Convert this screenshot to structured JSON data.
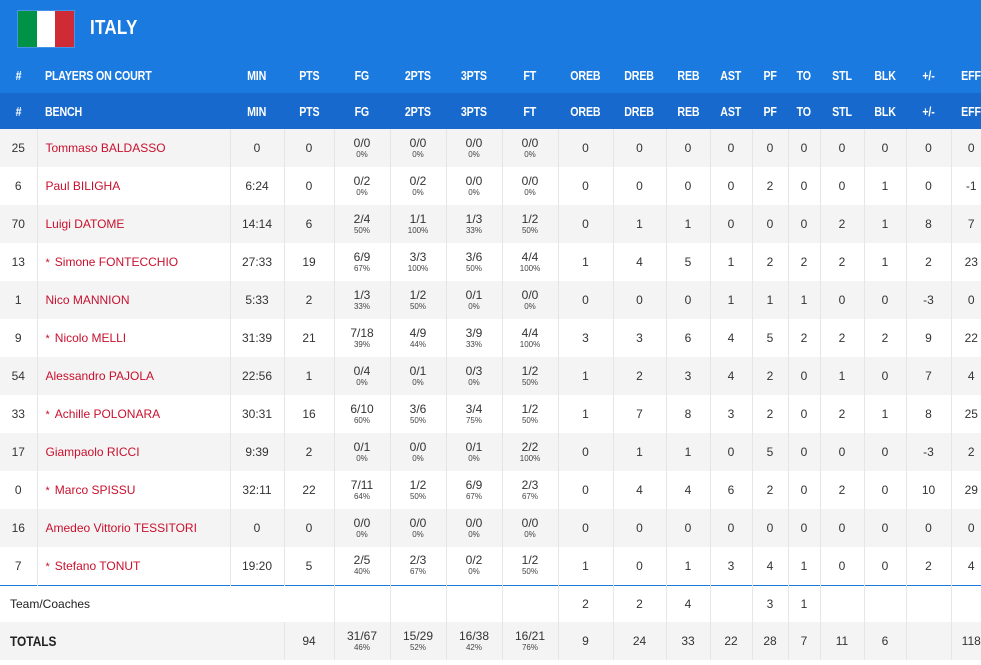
{
  "team": {
    "name": "ITALY",
    "flag_colors": [
      "#009246",
      "#ffffff",
      "#ce2b37"
    ]
  },
  "header_oncourt": [
    "#",
    "PLAYERS ON COURT",
    "MIN",
    "PTS",
    "FG",
    "2PTS",
    "3PTS",
    "FT",
    "OREB",
    "DREB",
    "REB",
    "AST",
    "PF",
    "TO",
    "STL",
    "BLK",
    "+/-",
    "EFF"
  ],
  "header_bench": [
    "#",
    "BENCH",
    "MIN",
    "PTS",
    "FG",
    "2PTS",
    "3PTS",
    "FT",
    "OREB",
    "DREB",
    "REB",
    "AST",
    "PF",
    "TO",
    "STL",
    "BLK",
    "+/-",
    "EFF"
  ],
  "players": [
    {
      "num": "25",
      "starter": false,
      "name": "Tommaso BALDASSO",
      "min": "0",
      "pts": "0",
      "fg": "0/0",
      "fg_pct": "0%",
      "p2": "0/0",
      "p2_pct": "0%",
      "p3": "0/0",
      "p3_pct": "0%",
      "ft": "0/0",
      "ft_pct": "0%",
      "oreb": "0",
      "dreb": "0",
      "reb": "0",
      "ast": "0",
      "pf": "0",
      "to": "0",
      "stl": "0",
      "blk": "0",
      "pm": "0",
      "eff": "0"
    },
    {
      "num": "6",
      "starter": false,
      "name": "Paul BILIGHA",
      "min": "6:24",
      "pts": "0",
      "fg": "0/2",
      "fg_pct": "0%",
      "p2": "0/2",
      "p2_pct": "0%",
      "p3": "0/0",
      "p3_pct": "0%",
      "ft": "0/0",
      "ft_pct": "0%",
      "oreb": "0",
      "dreb": "0",
      "reb": "0",
      "ast": "0",
      "pf": "2",
      "to": "0",
      "stl": "0",
      "blk": "1",
      "pm": "0",
      "eff": "-1"
    },
    {
      "num": "70",
      "starter": false,
      "name": "Luigi DATOME",
      "min": "14:14",
      "pts": "6",
      "fg": "2/4",
      "fg_pct": "50%",
      "p2": "1/1",
      "p2_pct": "100%",
      "p3": "1/3",
      "p3_pct": "33%",
      "ft": "1/2",
      "ft_pct": "50%",
      "oreb": "0",
      "dreb": "1",
      "reb": "1",
      "ast": "0",
      "pf": "0",
      "to": "0",
      "stl": "2",
      "blk": "1",
      "pm": "8",
      "eff": "7"
    },
    {
      "num": "13",
      "starter": true,
      "name": "Simone FONTECCHIO",
      "min": "27:33",
      "pts": "19",
      "fg": "6/9",
      "fg_pct": "67%",
      "p2": "3/3",
      "p2_pct": "100%",
      "p3": "3/6",
      "p3_pct": "50%",
      "ft": "4/4",
      "ft_pct": "100%",
      "oreb": "1",
      "dreb": "4",
      "reb": "5",
      "ast": "1",
      "pf": "2",
      "to": "2",
      "stl": "2",
      "blk": "1",
      "pm": "2",
      "eff": "23"
    },
    {
      "num": "1",
      "starter": false,
      "name": "Nico MANNION",
      "min": "5:33",
      "pts": "2",
      "fg": "1/3",
      "fg_pct": "33%",
      "p2": "1/2",
      "p2_pct": "50%",
      "p3": "0/1",
      "p3_pct": "0%",
      "ft": "0/0",
      "ft_pct": "0%",
      "oreb": "0",
      "dreb": "0",
      "reb": "0",
      "ast": "1",
      "pf": "1",
      "to": "1",
      "stl": "0",
      "blk": "0",
      "pm": "-3",
      "eff": "0"
    },
    {
      "num": "9",
      "starter": true,
      "name": "Nicolo MELLI",
      "min": "31:39",
      "pts": "21",
      "fg": "7/18",
      "fg_pct": "39%",
      "p2": "4/9",
      "p2_pct": "44%",
      "p3": "3/9",
      "p3_pct": "33%",
      "ft": "4/4",
      "ft_pct": "100%",
      "oreb": "3",
      "dreb": "3",
      "reb": "6",
      "ast": "4",
      "pf": "5",
      "to": "2",
      "stl": "2",
      "blk": "2",
      "pm": "9",
      "eff": "22"
    },
    {
      "num": "54",
      "starter": false,
      "name": "Alessandro PAJOLA",
      "min": "22:56",
      "pts": "1",
      "fg": "0/4",
      "fg_pct": "0%",
      "p2": "0/1",
      "p2_pct": "0%",
      "p3": "0/3",
      "p3_pct": "0%",
      "ft": "1/2",
      "ft_pct": "50%",
      "oreb": "1",
      "dreb": "2",
      "reb": "3",
      "ast": "4",
      "pf": "2",
      "to": "0",
      "stl": "1",
      "blk": "0",
      "pm": "7",
      "eff": "4"
    },
    {
      "num": "33",
      "starter": true,
      "name": "Achille POLONARA",
      "min": "30:31",
      "pts": "16",
      "fg": "6/10",
      "fg_pct": "60%",
      "p2": "3/6",
      "p2_pct": "50%",
      "p3": "3/4",
      "p3_pct": "75%",
      "ft": "1/2",
      "ft_pct": "50%",
      "oreb": "1",
      "dreb": "7",
      "reb": "8",
      "ast": "3",
      "pf": "2",
      "to": "0",
      "stl": "2",
      "blk": "1",
      "pm": "8",
      "eff": "25"
    },
    {
      "num": "17",
      "starter": false,
      "name": "Giampaolo RICCI",
      "min": "9:39",
      "pts": "2",
      "fg": "0/1",
      "fg_pct": "0%",
      "p2": "0/0",
      "p2_pct": "0%",
      "p3": "0/1",
      "p3_pct": "0%",
      "ft": "2/2",
      "ft_pct": "100%",
      "oreb": "0",
      "dreb": "1",
      "reb": "1",
      "ast": "0",
      "pf": "5",
      "to": "0",
      "stl": "0",
      "blk": "0",
      "pm": "-3",
      "eff": "2"
    },
    {
      "num": "0",
      "starter": true,
      "name": "Marco SPISSU",
      "min": "32:11",
      "pts": "22",
      "fg": "7/11",
      "fg_pct": "64%",
      "p2": "1/2",
      "p2_pct": "50%",
      "p3": "6/9",
      "p3_pct": "67%",
      "ft": "2/3",
      "ft_pct": "67%",
      "oreb": "0",
      "dreb": "4",
      "reb": "4",
      "ast": "6",
      "pf": "2",
      "to": "0",
      "stl": "2",
      "blk": "0",
      "pm": "10",
      "eff": "29"
    },
    {
      "num": "16",
      "starter": false,
      "name": "Amedeo Vittorio TESSITORI",
      "min": "0",
      "pts": "0",
      "fg": "0/0",
      "fg_pct": "0%",
      "p2": "0/0",
      "p2_pct": "0%",
      "p3": "0/0",
      "p3_pct": "0%",
      "ft": "0/0",
      "ft_pct": "0%",
      "oreb": "0",
      "dreb": "0",
      "reb": "0",
      "ast": "0",
      "pf": "0",
      "to": "0",
      "stl": "0",
      "blk": "0",
      "pm": "0",
      "eff": "0"
    },
    {
      "num": "7",
      "starter": true,
      "name": "Stefano TONUT",
      "min": "19:20",
      "pts": "5",
      "fg": "2/5",
      "fg_pct": "40%",
      "p2": "2/3",
      "p2_pct": "67%",
      "p3": "0/2",
      "p3_pct": "0%",
      "ft": "1/2",
      "ft_pct": "50%",
      "oreb": "1",
      "dreb": "0",
      "reb": "1",
      "ast": "3",
      "pf": "4",
      "to": "1",
      "stl": "0",
      "blk": "0",
      "pm": "2",
      "eff": "4"
    }
  ],
  "team_coaches": {
    "label": "Team/Coaches",
    "oreb": "2",
    "dreb": "2",
    "reb": "4",
    "pf": "3",
    "to": "1"
  },
  "totals": {
    "label": "TOTALS",
    "pts": "94",
    "fg": "31/67",
    "fg_pct": "46%",
    "p2": "15/29",
    "p2_pct": "52%",
    "p3": "16/38",
    "p3_pct": "42%",
    "ft": "16/21",
    "ft_pct": "76%",
    "oreb": "9",
    "dreb": "24",
    "reb": "33",
    "ast": "22",
    "pf": "28",
    "to": "7",
    "stl": "11",
    "blk": "6",
    "pm": "",
    "eff": "118"
  },
  "star_symbol": "*"
}
